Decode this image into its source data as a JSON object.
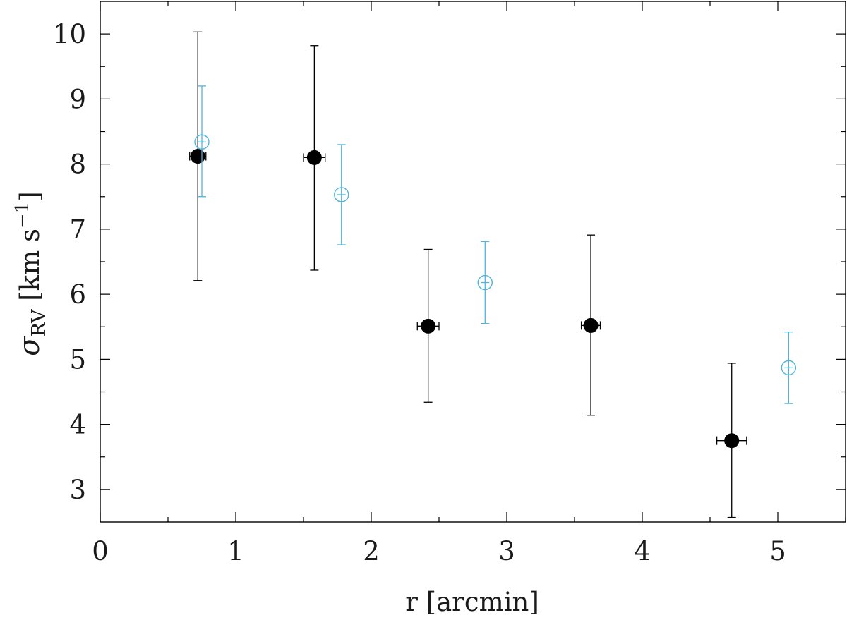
{
  "chart_data": {
    "type": "scatter",
    "xlabel": "r [arcmin]",
    "ylabel": {
      "symbol": "σ",
      "subscript": "RV",
      "unit_prefix": " [km s",
      "superscript": "−1",
      "unit_suffix": "]"
    },
    "xlim": [
      0,
      5.5
    ],
    "ylim": [
      2.5,
      10.5
    ],
    "x_ticks": [
      0,
      1,
      2,
      3,
      4,
      5
    ],
    "y_ticks": [
      3,
      4,
      5,
      6,
      7,
      8,
      9,
      10
    ],
    "x_minor_ticks": [
      0.5,
      1.5,
      2.5,
      3.5,
      4.5,
      5.5
    ],
    "y_minor_ticks": [
      3.5,
      4.5,
      5.5,
      6.5,
      7.5,
      8.5,
      9.5
    ],
    "grid": false,
    "series": [
      {
        "marker": "filled-circle",
        "color": "#000000",
        "points": [
          {
            "x": 0.72,
            "y": 8.12,
            "y_low": 6.21,
            "y_high": 10.03,
            "x_low": 0.66,
            "x_high": 0.78
          },
          {
            "x": 1.58,
            "y": 8.1,
            "y_low": 6.37,
            "y_high": 9.82,
            "x_low": 1.5,
            "x_high": 1.66
          },
          {
            "x": 2.42,
            "y": 5.51,
            "y_low": 4.34,
            "y_high": 6.69,
            "x_low": 2.34,
            "x_high": 2.5
          },
          {
            "x": 3.62,
            "y": 5.52,
            "y_low": 4.14,
            "y_high": 6.91,
            "x_low": 3.55,
            "x_high": 3.69
          },
          {
            "x": 4.66,
            "y": 3.75,
            "y_low": 2.57,
            "y_high": 4.94,
            "x_low": 4.55,
            "x_high": 4.77
          }
        ]
      },
      {
        "marker": "open-circle",
        "color": "#4fb3e0",
        "points": [
          {
            "x": 0.75,
            "y": 8.34,
            "y_low": 7.5,
            "y_high": 9.2
          },
          {
            "x": 1.78,
            "y": 7.53,
            "y_low": 6.76,
            "y_high": 8.3
          },
          {
            "x": 2.84,
            "y": 6.18,
            "y_low": 5.55,
            "y_high": 6.81
          },
          {
            "x": 5.08,
            "y": 4.87,
            "y_low": 4.32,
            "y_high": 5.42
          }
        ]
      }
    ]
  }
}
